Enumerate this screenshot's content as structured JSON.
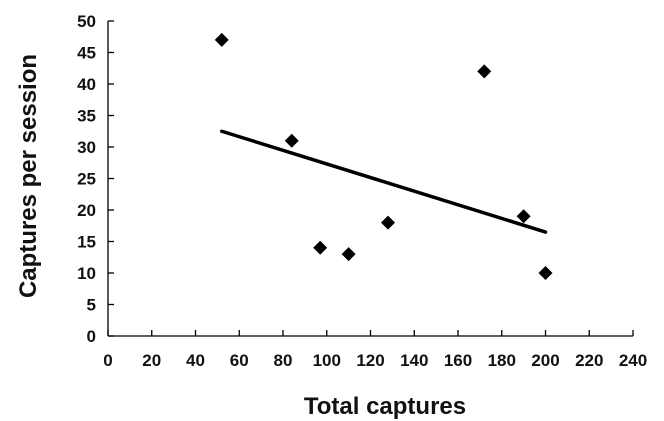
{
  "chart_data": {
    "type": "scatter",
    "title": "",
    "xlabel": "Total captures",
    "ylabel": "Captures per session",
    "xlim": [
      0,
      240
    ],
    "ylim": [
      0,
      50
    ],
    "x_ticks": [
      "0",
      "20",
      "40",
      "60",
      "80",
      "100",
      "120",
      "140",
      "160",
      "180",
      "200",
      "220",
      "240"
    ],
    "y_ticks": [
      "0",
      "5",
      "10",
      "15",
      "20",
      "25",
      "30",
      "35",
      "40",
      "45",
      "50"
    ],
    "grid": false,
    "legend": "none",
    "series": [
      {
        "marker": "diamond",
        "color": "#000000",
        "points": [
          {
            "x": 52,
            "y": 47
          },
          {
            "x": 84,
            "y": 31
          },
          {
            "x": 97,
            "y": 14
          },
          {
            "x": 110,
            "y": 13
          },
          {
            "x": 128,
            "y": 18
          },
          {
            "x": 172,
            "y": 42
          },
          {
            "x": 190,
            "y": 19
          },
          {
            "x": 200,
            "y": 10
          }
        ]
      }
    ],
    "trendline": {
      "type": "linear",
      "color": "#000000",
      "x": [
        52,
        200
      ],
      "y": [
        32.5,
        16.5
      ]
    }
  }
}
